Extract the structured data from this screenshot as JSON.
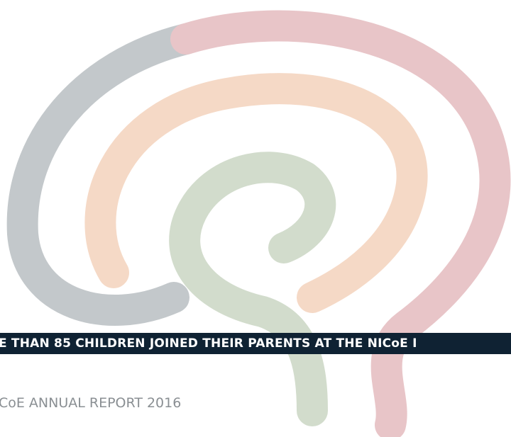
{
  "banner": {
    "text": "E THAN 85 CHILDREN JOINED THEIR PARENTS AT THE NICoE I"
  },
  "footer": {
    "text": "CoE ANNUAL REPORT 2016"
  }
}
